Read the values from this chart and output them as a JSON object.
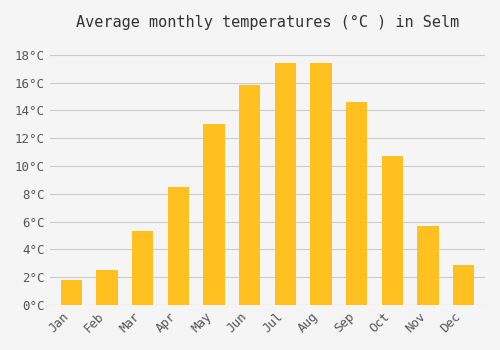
{
  "title": "Average monthly temperatures (°C ) in Selm",
  "months": [
    "Jan",
    "Feb",
    "Mar",
    "Apr",
    "May",
    "Jun",
    "Jul",
    "Aug",
    "Sep",
    "Oct",
    "Nov",
    "Dec"
  ],
  "values": [
    1.8,
    2.5,
    5.3,
    8.5,
    13.0,
    15.8,
    17.4,
    17.4,
    14.6,
    10.7,
    5.7,
    2.9
  ],
  "bar_color_top": "#FFC020",
  "bar_color_bottom": "#FFAA00",
  "background_color": "#F5F5F5",
  "grid_color": "#CCCCCC",
  "yticks": [
    0,
    2,
    4,
    6,
    8,
    10,
    12,
    14,
    16,
    18
  ],
  "ylim": [
    0,
    19
  ],
  "title_fontsize": 11,
  "tick_fontsize": 9,
  "font_family": "monospace"
}
